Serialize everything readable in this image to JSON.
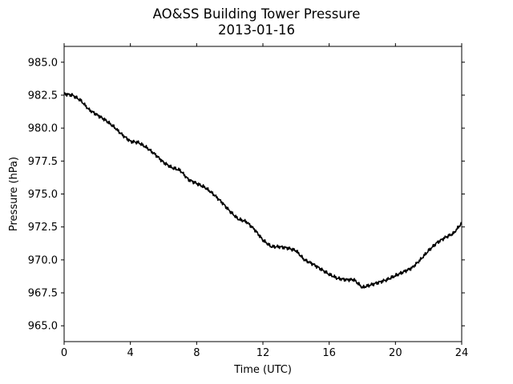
{
  "chart_data": {
    "type": "line",
    "title": "AO&SS Building Tower Pressure",
    "subtitle": "2013-01-16",
    "xlabel": "Time (UTC)",
    "ylabel": "Pressure (hPa)",
    "xlim": [
      0,
      24
    ],
    "ylim": [
      963.8,
      986.2
    ],
    "x_ticks": [
      0,
      4,
      8,
      12,
      16,
      20,
      24
    ],
    "y_ticks": [
      965.0,
      967.5,
      970.0,
      972.5,
      975.0,
      977.5,
      980.0,
      982.5,
      985.0
    ],
    "y_tick_decimals": 1,
    "grid": false,
    "line_color": "#000000",
    "series": [
      {
        "x": [
          0,
          0.5,
          1,
          1.5,
          2,
          2.5,
          3,
          3.5,
          4,
          4.5,
          5,
          5.5,
          6,
          6.5,
          7,
          7.5,
          8,
          8.5,
          9,
          9.5,
          10,
          10.5,
          11,
          11.5,
          12,
          12.5,
          13,
          13.5,
          14,
          14.5,
          15,
          15.5,
          16,
          16.5,
          17,
          17.5,
          18,
          18.5,
          19,
          19.5,
          20,
          20.5,
          21,
          21.5,
          22,
          22.5,
          23,
          23.5,
          24
        ],
        "values": [
          982.6,
          982.5,
          982.1,
          981.4,
          981.0,
          980.6,
          980.1,
          979.5,
          979.0,
          978.9,
          978.5,
          978.0,
          977.4,
          977.0,
          976.8,
          976.1,
          975.8,
          975.5,
          975.0,
          974.4,
          973.7,
          973.1,
          972.9,
          972.3,
          971.5,
          971.0,
          971.0,
          970.9,
          970.7,
          970.0,
          969.7,
          969.3,
          968.9,
          968.6,
          968.5,
          968.5,
          967.9,
          968.1,
          968.3,
          968.5,
          968.8,
          969.1,
          969.4,
          970.0,
          970.7,
          971.3,
          971.7,
          972.0,
          972.8
        ]
      }
    ]
  }
}
